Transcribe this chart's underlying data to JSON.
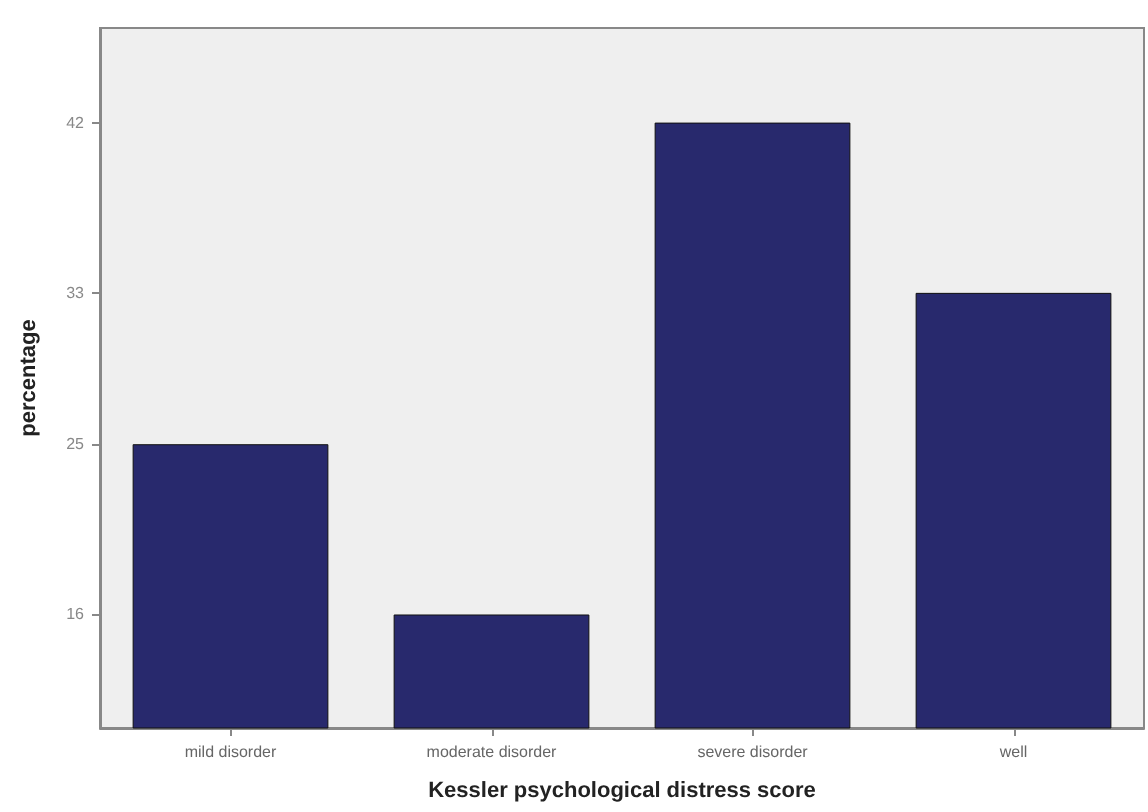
{
  "chart_data": {
    "type": "bar",
    "xlabel": "Kessler psychological distress score",
    "ylabel": "percentage",
    "categories": [
      "mild disorder",
      "moderate disorder",
      "severe disorder",
      "well"
    ],
    "values": [
      25,
      16,
      42,
      33
    ],
    "color": "#28296d",
    "ylim": [
      10,
      47
    ],
    "yticks": [
      16,
      25,
      33,
      42
    ],
    "grid": false
  }
}
